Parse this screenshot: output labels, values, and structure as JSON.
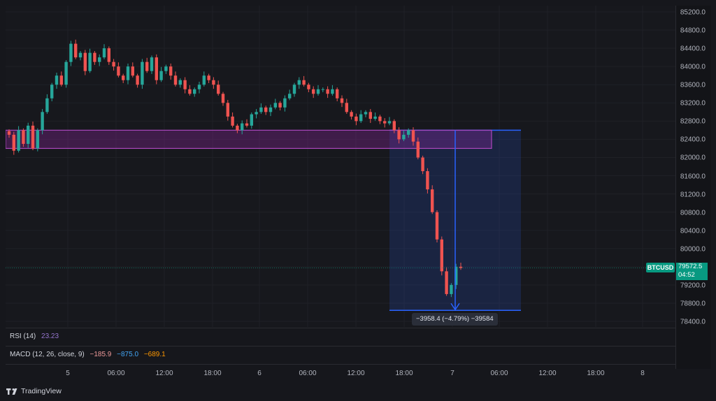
{
  "symbol": "BTCUSD",
  "last_price": "79572.5",
  "countdown": "04:52",
  "price_axis": [
    "85200.0",
    "84800.0",
    "84400.0",
    "84000.0",
    "83600.0",
    "83200.0",
    "82800.0",
    "82400.0",
    "82000.0",
    "81600.0",
    "81200.0",
    "80800.0",
    "80400.0",
    "80000.0",
    "79600.0",
    "79200.0",
    "78800.0",
    "78400.0"
  ],
  "time_axis": [
    "5",
    "06:00",
    "12:00",
    "18:00",
    "6",
    "06:00",
    "12:00",
    "18:00",
    "7",
    "06:00",
    "12:00",
    "18:00",
    "8"
  ],
  "rsi": {
    "label": "RSI (14)",
    "value": "23.23"
  },
  "macd": {
    "label": "MACD (12, 26, close, 9)",
    "hist": "−185.9",
    "macd": "−875.0",
    "signal": "−689.1"
  },
  "measure": {
    "text": "−3958.4 (−4.79%) −39584"
  },
  "footer": {
    "brand": "TradingView"
  },
  "colors": {
    "up": "#26a69a",
    "down": "#ef5350",
    "zone": "#9c27b0",
    "measure": "#2962ff",
    "badge": "#089981",
    "rsi": "#7e57c2"
  },
  "chart_data": {
    "type": "candlestick",
    "title": "",
    "symbol": "BTCUSD",
    "ylim": [
      78300,
      85300
    ],
    "x_labels": [
      "5",
      "06:00",
      "12:00",
      "18:00",
      "6",
      "06:00",
      "12:00",
      "18:00",
      "7",
      "06:00",
      "12:00",
      "18:00",
      "8"
    ],
    "close_series": [
      82500,
      82150,
      82600,
      82300,
      82700,
      82200,
      82600,
      83000,
      83300,
      83600,
      83800,
      83600,
      84100,
      84500,
      84200,
      84300,
      83900,
      84300,
      84100,
      84200,
      84400,
      84100,
      84000,
      83800,
      83700,
      84000,
      83800,
      83600,
      84100,
      83900,
      84200,
      83700,
      83900,
      84000,
      83800,
      83600,
      83700,
      83500,
      83400,
      83500,
      83600,
      83800,
      83700,
      83600,
      83400,
      83200,
      82900,
      82700,
      82600,
      82750,
      82700,
      82950,
      83000,
      83100,
      83000,
      83100,
      83200,
      83100,
      83300,
      83400,
      83600,
      83700,
      83600,
      83500,
      83400,
      83500,
      83500,
      83400,
      83500,
      83300,
      83200,
      83000,
      82900,
      82800,
      82950,
      83000,
      82850,
      82900,
      82800,
      82750,
      82800,
      82600,
      82400,
      82500,
      82600,
      82350,
      82000,
      81700,
      81300,
      80800,
      80200,
      79500,
      79000,
      79200,
      79600,
      79572.5
    ],
    "support_zone": {
      "top": 82600,
      "bottom": 82200
    },
    "measure": {
      "from": 82600,
      "to": 78642,
      "change": "−3958.4",
      "change_pct": "−4.79%"
    },
    "last_price": 79572.5
  }
}
